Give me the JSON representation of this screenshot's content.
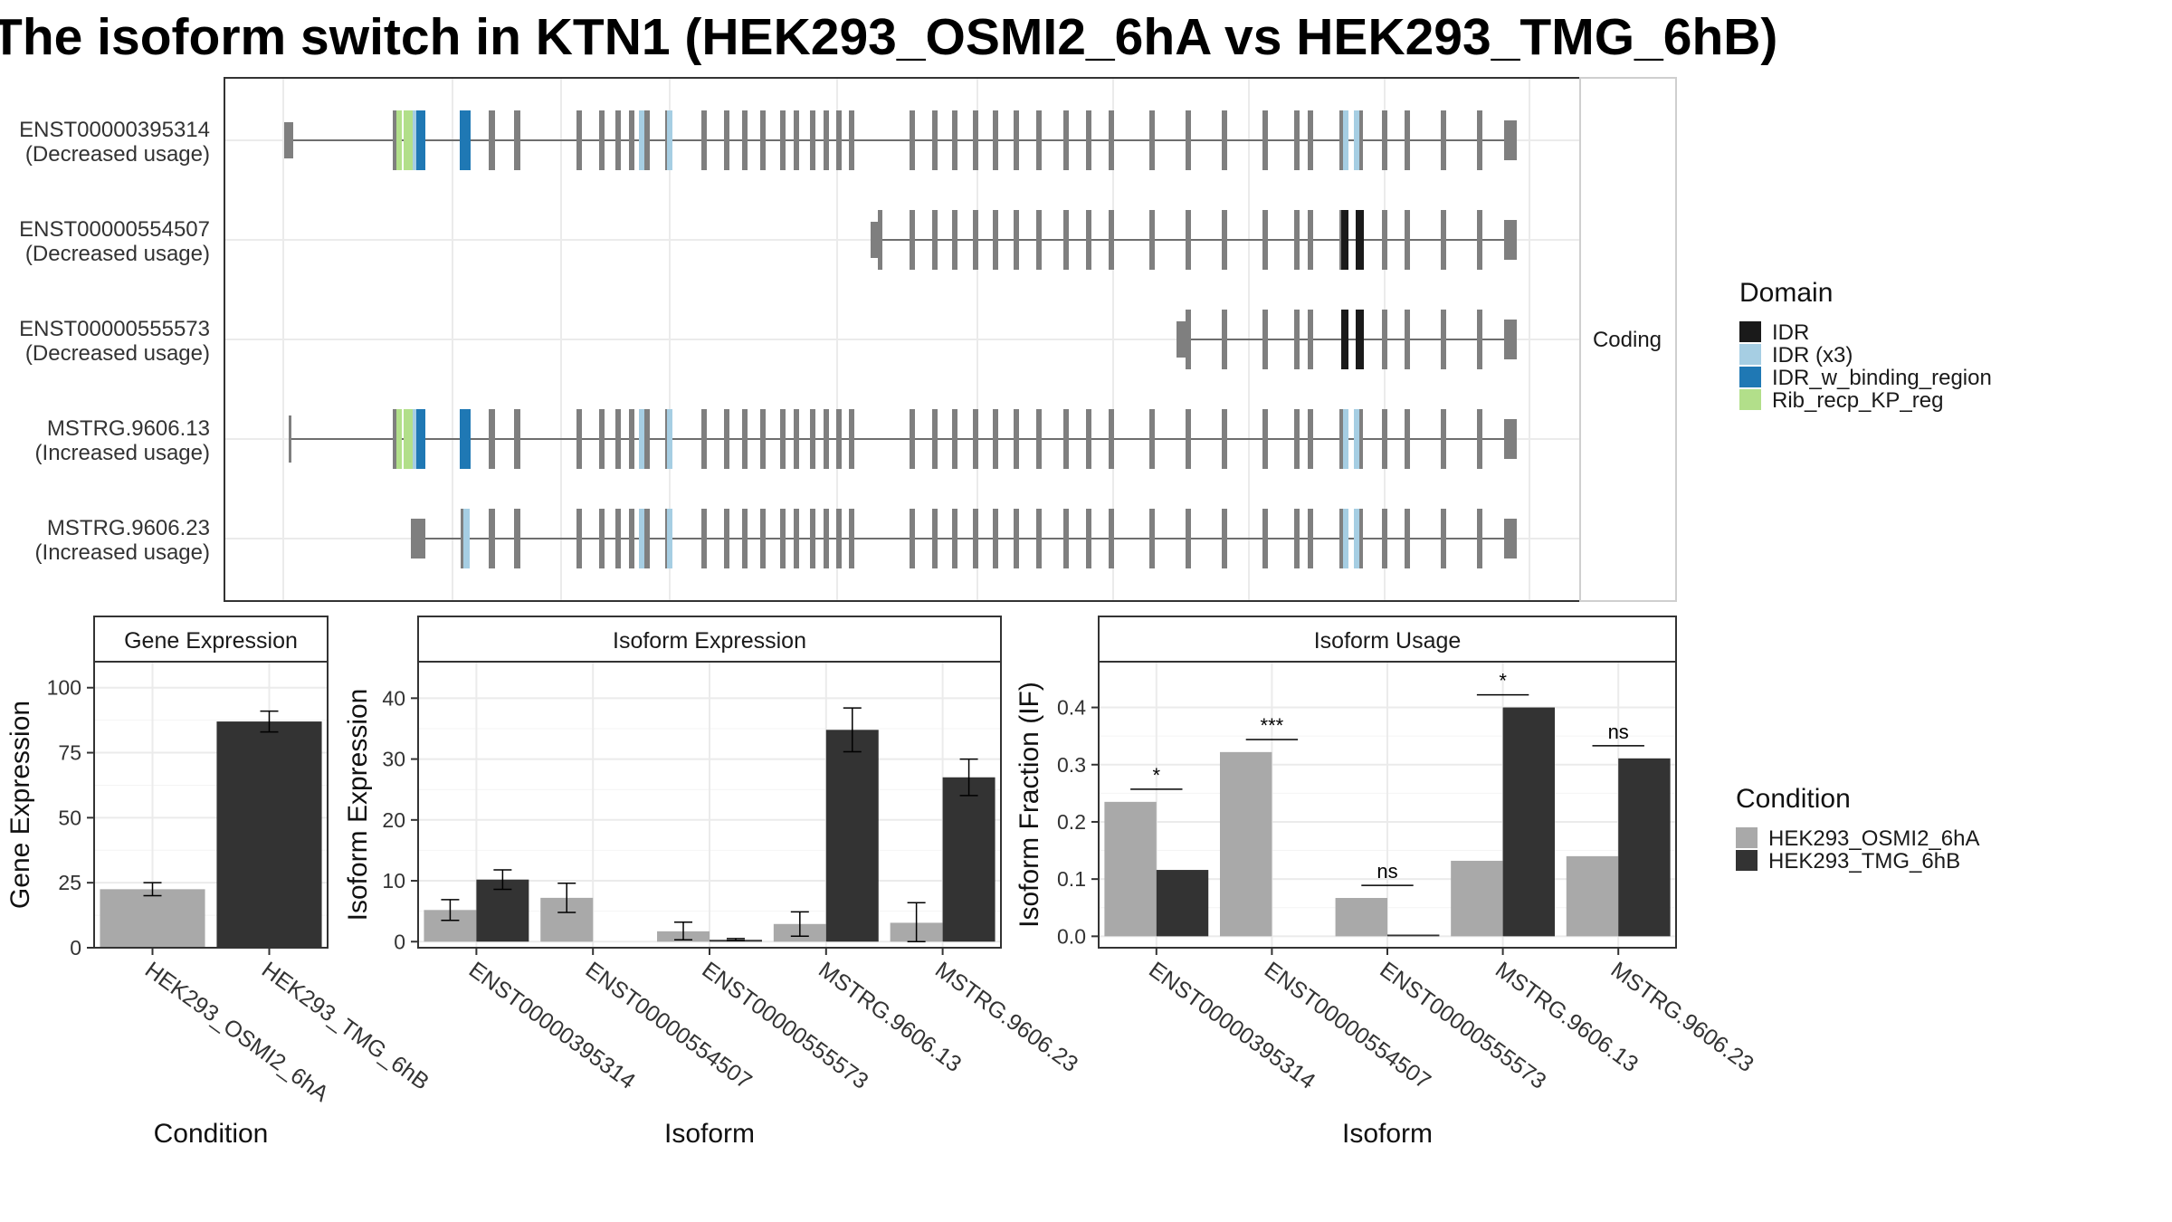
{
  "title": "The isoform switch in KTN1 (HEK293_OSMI2_6hA vs HEK293_TMG_6hB)",
  "colors": {
    "cond_a": "#a9a9a9",
    "cond_b": "#333333",
    "exon": "#7f7f7f",
    "IDR": "#1a1a1a",
    "IDR (x3)": "#a6cee3",
    "IDR_w_binding_region": "#1f78b4",
    "Rib_recp_KP_reg": "#b2df8a"
  },
  "chart_data": [
    {
      "type": "transcript-structure",
      "facet_label": "Coding",
      "legend_title": "Domain",
      "domains": [
        "IDR",
        "IDR (x3)",
        "IDR_w_binding_region",
        "Rib_recp_KP_reg"
      ],
      "transcripts": [
        {
          "id": "ENST00000395314",
          "usage": "(Decreased usage)"
        },
        {
          "id": "ENST00000554507",
          "usage": "(Decreased usage)"
        },
        {
          "id": "ENST00000555573",
          "usage": "(Decreased usage)"
        },
        {
          "id": "MSTRG.9606.13",
          "usage": "(Increased usage)"
        },
        {
          "id": "MSTRG.9606.23",
          "usage": "(Increased usage)"
        }
      ]
    },
    {
      "type": "bar",
      "title": "Gene Expression",
      "xlabel": "Condition",
      "ylabel": "Gene Expression",
      "categories": [
        "HEK293_OSMI2_6hA",
        "HEK293_TMG_6hB"
      ],
      "values": [
        22.5,
        87
      ],
      "errors": [
        [
          20,
          25
        ],
        [
          83,
          91
        ]
      ],
      "ylim": [
        0,
        110
      ],
      "yticks": [
        0,
        25,
        50,
        75,
        100
      ]
    },
    {
      "type": "bar",
      "title": "Isoform Expression",
      "xlabel": "Isoform",
      "ylabel": "Isoform Expression",
      "categories": [
        "ENST00000395314",
        "ENST00000554507",
        "ENST00000555573",
        "MSTRG.9606.13",
        "MSTRG.9606.23"
      ],
      "series": [
        {
          "name": "HEK293_OSMI2_6hA",
          "values": [
            5.2,
            7.2,
            1.7,
            2.9,
            3.1
          ],
          "errors": [
            [
              3.5,
              6.9
            ],
            [
              4.8,
              9.6
            ],
            [
              0.3,
              3.2
            ],
            [
              0.9,
              4.9
            ],
            [
              0,
              6.4
            ]
          ]
        },
        {
          "name": "HEK293_TMG_6hB",
          "values": [
            10.2,
            0,
            0.3,
            34.8,
            27
          ],
          "errors": [
            [
              8.6,
              11.8
            ],
            [
              0,
              0
            ],
            [
              0.2,
              0.5
            ],
            [
              31.2,
              38.4
            ],
            [
              24,
              30
            ]
          ]
        }
      ],
      "ylim": [
        -1,
        46
      ],
      "yticks": [
        0,
        10,
        20,
        30,
        40
      ]
    },
    {
      "type": "bar",
      "title": "Isoform Usage",
      "xlabel": "Isoform",
      "ylabel": "Isoform Fraction (IF)",
      "categories": [
        "ENST00000395314",
        "ENST00000554507",
        "ENST00000555573",
        "MSTRG.9606.13",
        "MSTRG.9606.23"
      ],
      "series": [
        {
          "name": "HEK293_OSMI2_6hA",
          "values": [
            0.235,
            0.322,
            0.067,
            0.132,
            0.14
          ]
        },
        {
          "name": "HEK293_TMG_6hB",
          "values": [
            0.116,
            0,
            0.003,
            0.4,
            0.311
          ]
        }
      ],
      "significance": [
        "*",
        "***",
        "ns",
        "*",
        "ns"
      ],
      "ylim": [
        -0.02,
        0.48
      ],
      "yticks": [
        0,
        0.1,
        0.2,
        0.3,
        0.4
      ]
    }
  ],
  "condition_legend": {
    "title": "Condition",
    "items": [
      "HEK293_OSMI2_6hA",
      "HEK293_TMG_6hB"
    ]
  }
}
